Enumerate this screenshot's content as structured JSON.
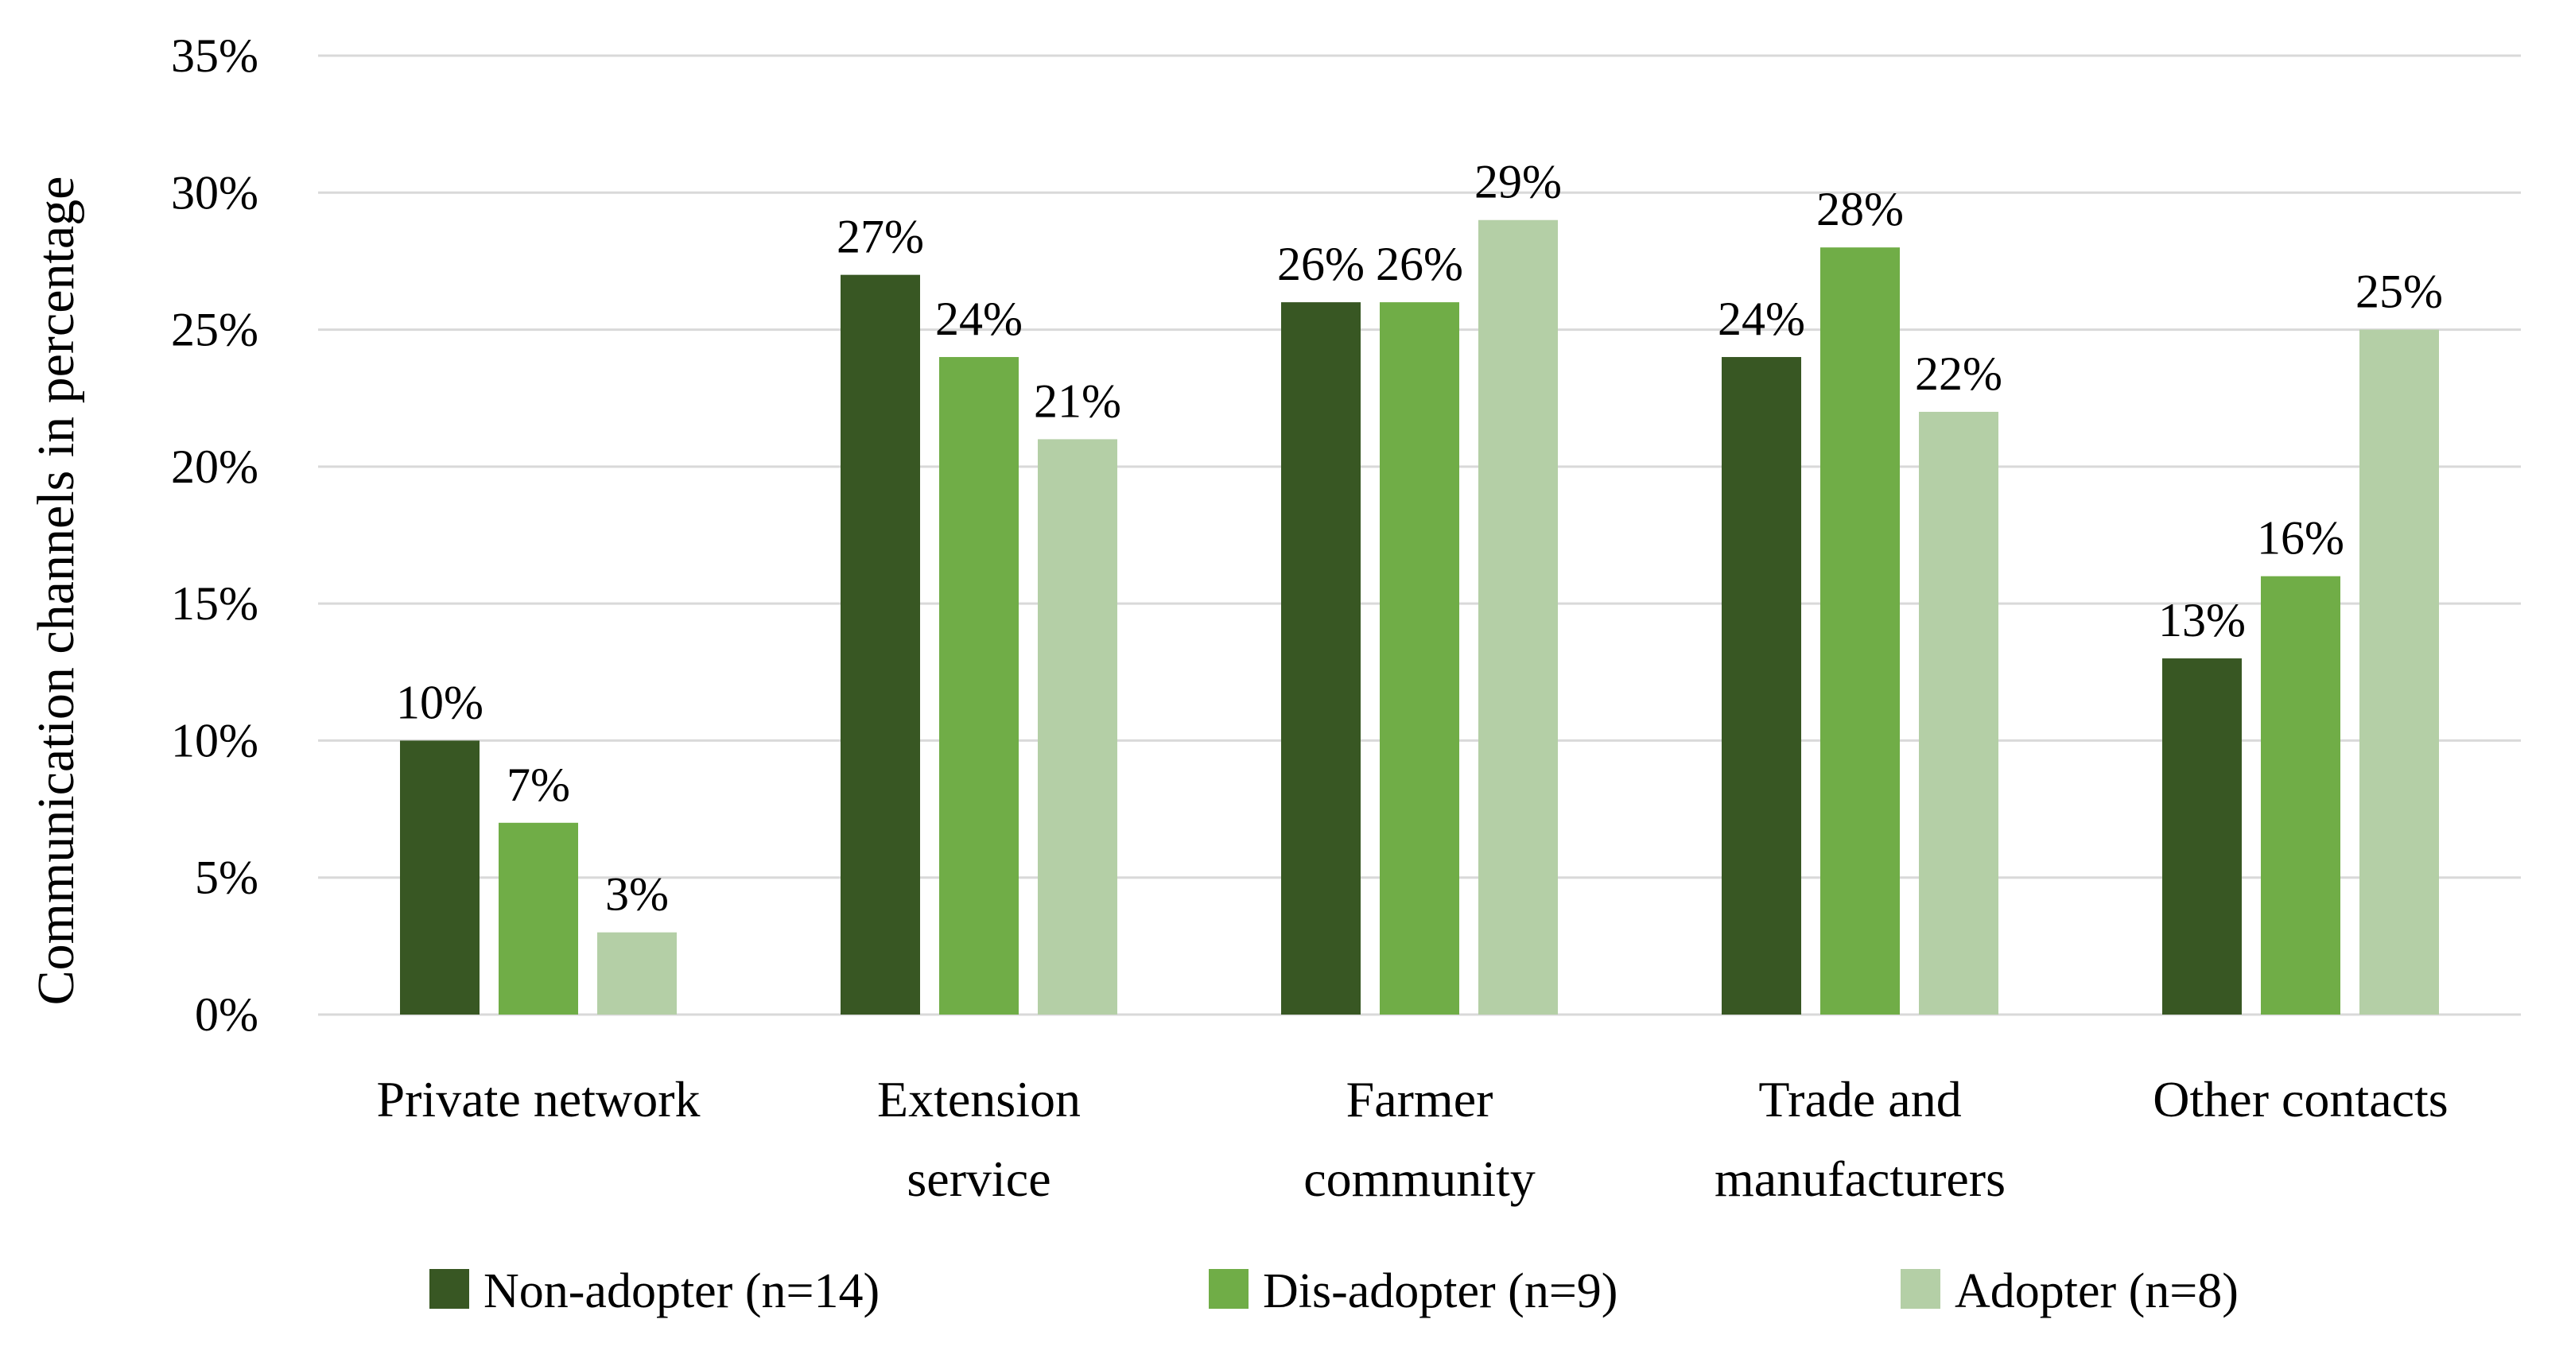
{
  "chart_data": {
    "type": "bar",
    "title": "",
    "xlabel": "",
    "ylabel": "Communication channels in percentage",
    "ylim": [
      0,
      35
    ],
    "yticks": [
      0,
      5,
      10,
      15,
      20,
      25,
      30,
      35
    ],
    "ytick_labels": [
      "0%",
      "5%",
      "10%",
      "15%",
      "20%",
      "25%",
      "30%",
      "35%"
    ],
    "grid": true,
    "legend_position": "bottom",
    "categories": [
      [
        "Private network"
      ],
      [
        "Extension",
        "service"
      ],
      [
        "Farmer",
        "community"
      ],
      [
        "Trade and",
        "manufacturers"
      ],
      [
        "Other contacts"
      ]
    ],
    "series": [
      {
        "name": "Non-adopter (n=14)",
        "color": "#385723",
        "values": [
          10,
          27,
          26,
          24,
          13
        ],
        "labels": [
          "10%",
          "27%",
          "26%",
          "24%",
          "13%"
        ]
      },
      {
        "name": "Dis-adopter (n=9)",
        "color": "#70ad47",
        "values": [
          7,
          24,
          26,
          28,
          16
        ],
        "labels": [
          "7%",
          "24%",
          "26%",
          "28%",
          "16%"
        ]
      },
      {
        "name": "Adopter (n=8)",
        "color": "#b4cfa6",
        "values": [
          3,
          21,
          29,
          22,
          25
        ],
        "labels": [
          "3%",
          "21%",
          "29%",
          "22%",
          "25%"
        ]
      }
    ],
    "gridline_color": "#d9d9d9"
  }
}
